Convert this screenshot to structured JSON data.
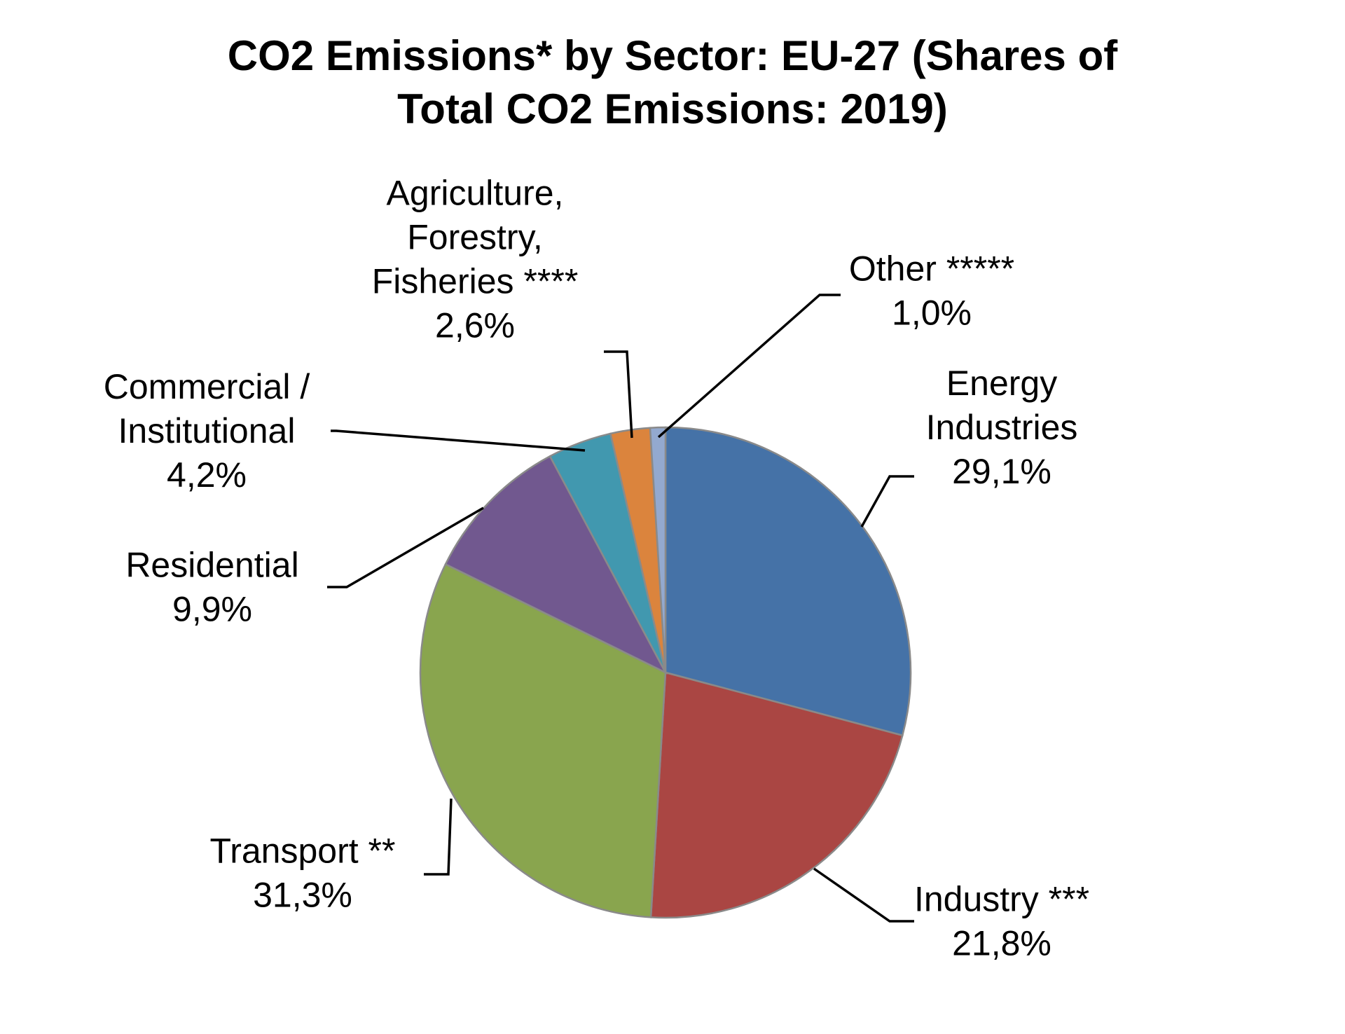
{
  "chart_data": {
    "type": "pie",
    "title_lines": [
      "CO2 Emissions* by Sector: EU-27 (Shares of",
      "Total CO2 Emissions: 2019)"
    ],
    "slices": [
      {
        "label": [
          "Energy",
          "Industries"
        ],
        "value_label": "29,1%",
        "value": 29.1,
        "color": "#4572A7"
      },
      {
        "label": [
          "Industry  ***"
        ],
        "value_label": "21,8%",
        "value": 21.8,
        "color": "#AA4643"
      },
      {
        "label": [
          "Transport **"
        ],
        "value_label": "31,3%",
        "value": 31.3,
        "color": "#89A54E"
      },
      {
        "label": [
          "Residential"
        ],
        "value_label": "9,9%",
        "value": 9.9,
        "color": "#71588F"
      },
      {
        "label": [
          "Commercial  /",
          "Institutional"
        ],
        "value_label": "4,2%",
        "value": 4.2,
        "color": "#4198AF"
      },
      {
        "label": [
          "Agriculture,",
          "Forestry,",
          "Fisheries ****"
        ],
        "value_label": "2,6%",
        "value": 2.6,
        "color": "#DB843D"
      },
      {
        "label": [
          "Other  *****"
        ],
        "value_label": "1,0%",
        "value": 1.0,
        "color": "#93A9CF"
      }
    ],
    "start_angle": "12 o'clock",
    "direction": "clockwise",
    "legend": "none"
  }
}
